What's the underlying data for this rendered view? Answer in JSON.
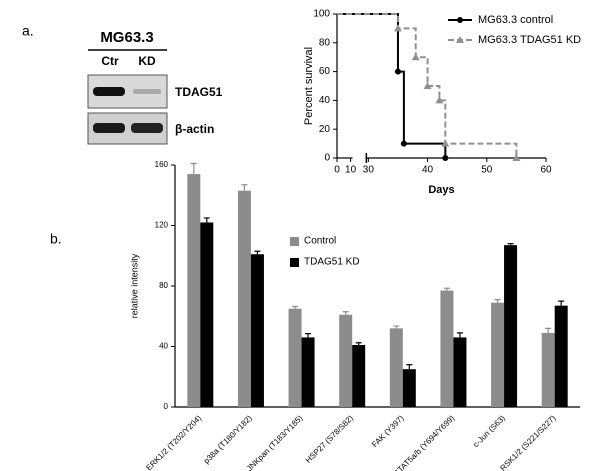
{
  "panels": {
    "a": "a.",
    "b": "b."
  },
  "blot": {
    "title": "MG63.3",
    "lanes": [
      "Ctr",
      "KD"
    ],
    "rows": [
      "TDAG51",
      "β-actin"
    ]
  },
  "chart_data": [
    {
      "type": "step",
      "xlabel": "Days",
      "ylabel": "Percent survival",
      "xlim": [
        0,
        60
      ],
      "xbreak": [
        10,
        30
      ],
      "xticks": [
        0,
        10,
        30,
        40,
        50,
        60
      ],
      "ylim": [
        0,
        100
      ],
      "yticks": [
        0,
        20,
        40,
        60,
        80,
        100
      ],
      "legend": "top-right",
      "series": [
        {
          "name": "MG63.3 control",
          "color": "#000000",
          "dash": false,
          "marker": "circle",
          "x": [
            0,
            35,
            36,
            43
          ],
          "values": [
            100,
            60,
            10,
            0
          ]
        },
        {
          "name": "MG63.3 TDAG51 KD",
          "color": "#909090",
          "dash": true,
          "marker": "triangle",
          "x": [
            0,
            35,
            38,
            40,
            42,
            43,
            55
          ],
          "values": [
            100,
            90,
            70,
            50,
            40,
            10,
            0
          ]
        }
      ]
    },
    {
      "type": "bar",
      "ylabel": "relative intensity",
      "categories": [
        "ERK1/2 (T202/Y204)",
        "p38a (T180/Y182)",
        "JNKpan (T183/Y185)",
        "HSP27 (S78/S82)",
        "FAK (Y397)",
        "STAT5a/b (Y694/Y699)",
        "c-Jun (S63)",
        "RSK1/2 (S221/S227)"
      ],
      "ylim": [
        0,
        160
      ],
      "yticks": [
        0,
        40,
        80,
        120,
        160
      ],
      "legend": "top-center",
      "series": [
        {
          "name": "Control",
          "color": "#8c8c8c",
          "values": [
            154,
            143,
            65,
            61,
            52,
            77,
            69,
            49
          ],
          "errors": [
            7,
            4,
            1.5,
            2,
            1.5,
            1.5,
            2,
            3
          ]
        },
        {
          "name": "TDAG51 KD",
          "color": "#000000",
          "values": [
            122,
            101,
            46,
            41,
            25,
            46,
            107,
            67
          ],
          "errors": [
            3,
            2,
            2.5,
            1.5,
            3,
            3,
            1,
            3
          ]
        }
      ]
    }
  ]
}
